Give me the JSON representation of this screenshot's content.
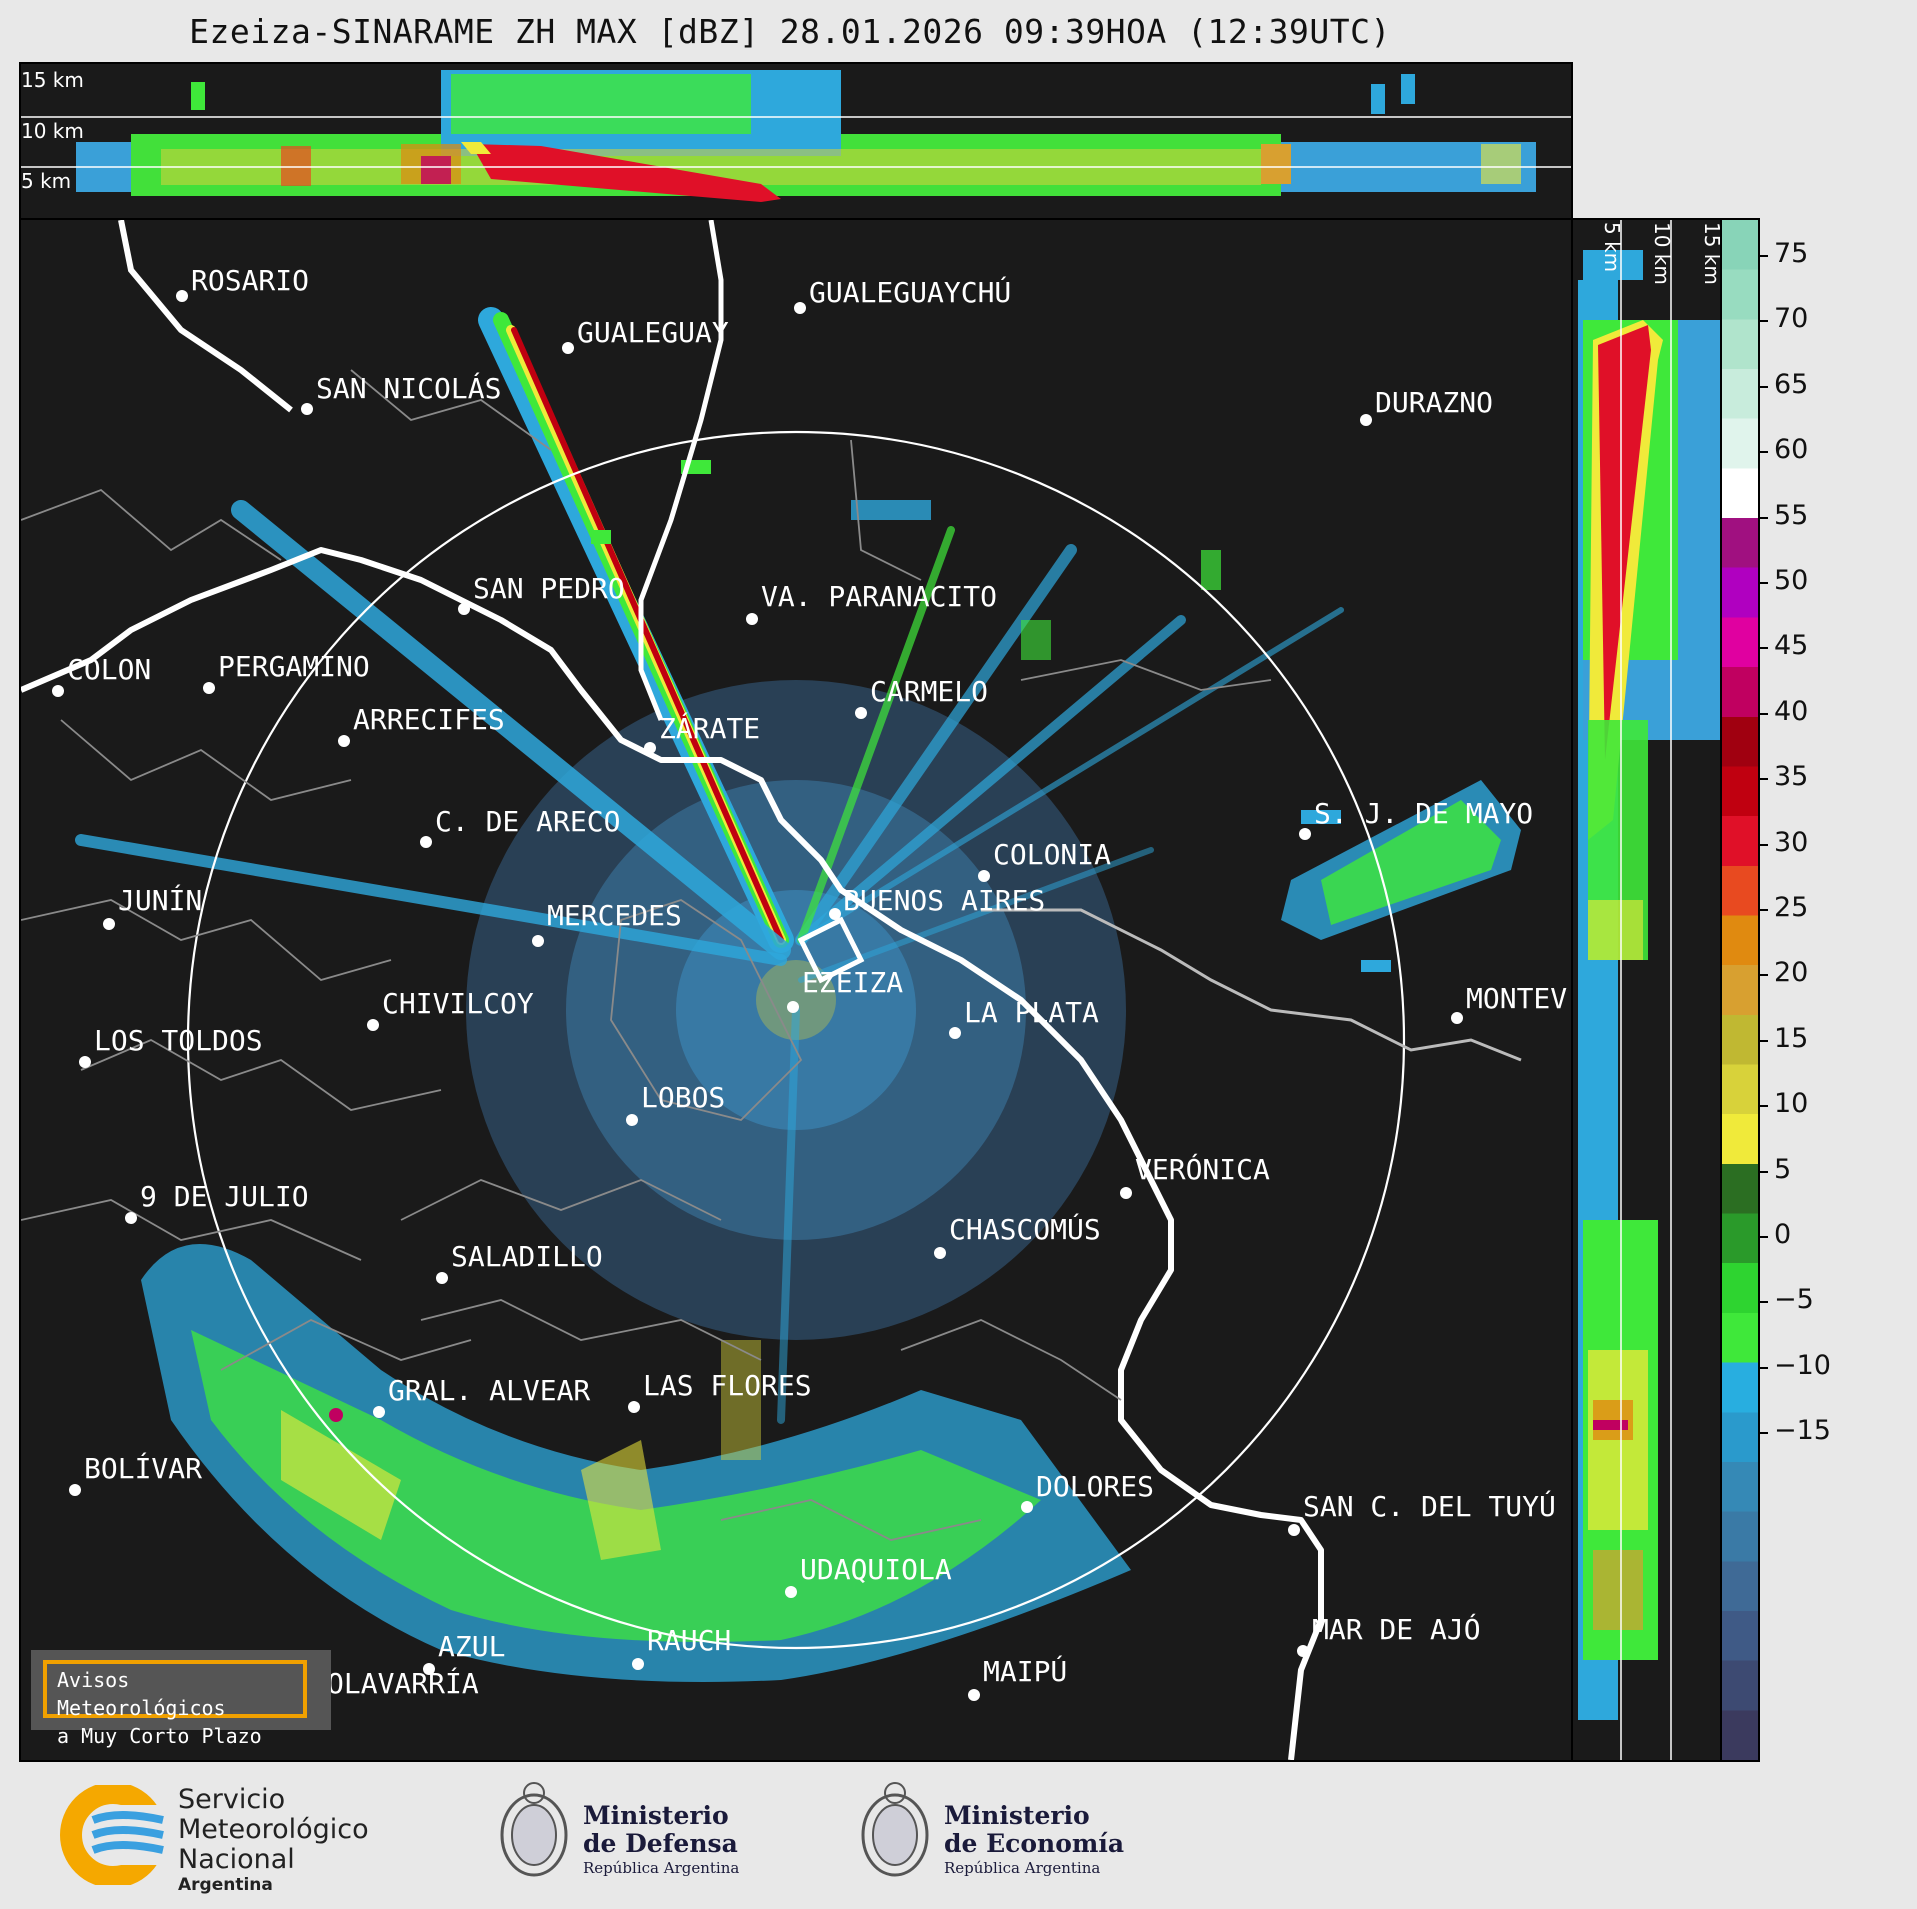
{
  "title": "Ezeiza-SINARAME ZH MAX [dBZ] 28.01.2026 09:39HOA (12:39UTC)",
  "top_panel": {
    "height_labels": [
      "15 km",
      "10 km",
      "5 km"
    ]
  },
  "side_panel": {
    "height_labels": [
      "5 km",
      "10 km",
      "15 km"
    ]
  },
  "colorbar": {
    "ticks": [
      "75",
      "70",
      "65",
      "60",
      "55",
      "50",
      "45",
      "40",
      "35",
      "30",
      "25",
      "20",
      "15",
      "10",
      "5",
      "0",
      "−5",
      "−10",
      "−15"
    ],
    "colors": [
      "#3b3a5e",
      "#3d4a72",
      "#3f5a86",
      "#3f6a96",
      "#3a7aa6",
      "#3589b6",
      "#2a9acc",
      "#28aee0",
      "#3fe83a",
      "#2ed430",
      "#2a9a2a",
      "#2b6e22",
      "#f0ea3a",
      "#d8d23a",
      "#c0b832",
      "#d8a030",
      "#e08a10",
      "#e84a20",
      "#e01028",
      "#c00010",
      "#a00010",
      "#c00060",
      "#e000a0",
      "#b000c0",
      "#a01080",
      "#ffffff",
      "#e0f4ec",
      "#c8ecdc",
      "#b0e4cc",
      "#98dcc0",
      "#88d4b8"
    ]
  },
  "cities": [
    {
      "name": "ROSARIO"
    },
    {
      "name": "GUALEGUAYCHÚ"
    },
    {
      "name": "GUALEGUAY"
    },
    {
      "name": "SAN NICOLÁS"
    },
    {
      "name": "DURAZNO"
    },
    {
      "name": "SAN PEDRO"
    },
    {
      "name": "VA. PARANACITO"
    },
    {
      "name": "COLON"
    },
    {
      "name": "PERGAMINO"
    },
    {
      "name": "CARMELO"
    },
    {
      "name": "ARRECIFES"
    },
    {
      "name": "ZÁRATE"
    },
    {
      "name": "C. DE ARECO"
    },
    {
      "name": "S. J. DE MAYO"
    },
    {
      "name": "COLONIA"
    },
    {
      "name": "JUNÍN"
    },
    {
      "name": "BUENOS AIRES"
    },
    {
      "name": "MERCEDES"
    },
    {
      "name": "EZEIZA"
    },
    {
      "name": "MONTEV"
    },
    {
      "name": "CHIVILCOY"
    },
    {
      "name": "LA PLATA"
    },
    {
      "name": "LOS TOLDOS"
    },
    {
      "name": "LOBOS"
    },
    {
      "name": "VERÓNICA"
    },
    {
      "name": "9 DE JULIO"
    },
    {
      "name": "CHASCOMÚS"
    },
    {
      "name": "SALADILLO"
    },
    {
      "name": "GRAL. ALVEAR"
    },
    {
      "name": "LAS FLORES"
    },
    {
      "name": "BOLÍVAR"
    },
    {
      "name": "DOLORES"
    },
    {
      "name": "SAN C. DEL TUYÚ"
    },
    {
      "name": "UDAQUIOLA"
    },
    {
      "name": "MAR DE AJÓ"
    },
    {
      "name": "AZUL"
    },
    {
      "name": "RAUCH"
    },
    {
      "name": "OLAVARRÍA"
    },
    {
      "name": "MAIPÚ"
    }
  ],
  "avisos": {
    "line1": "Avisos Meteorológicos",
    "line2": "a Muy Corto Plazo"
  },
  "logos": {
    "smn": {
      "line1": "Servicio",
      "line2": "Meteorológico",
      "line3": "Nacional",
      "line4": "Argentina"
    },
    "defensa": {
      "line1": "Ministerio",
      "line2": "de Defensa",
      "line3": "República Argentina"
    },
    "economia": {
      "line1": "Ministerio",
      "line2": "de Economía",
      "line3": "República Argentina"
    }
  }
}
